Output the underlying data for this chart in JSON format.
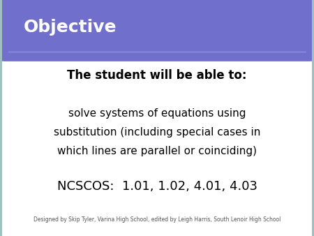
{
  "title": "Objective",
  "title_bg_color": "#7070CC",
  "title_text_color": "#FFFFFF",
  "body_bg_color": "#FFFFFF",
  "outer_bg_color": "#A0C0C0",
  "border_color": "#A0C0C0",
  "header_text": "The student will be able to:",
  "body_text_line1": "solve systems of equations using",
  "body_text_line2": "substitution (including special cases in",
  "body_text_line3": "which lines are parallel or coinciding)",
  "ncscos_text": "NCSCOS:  1.01, 1.02, 4.01, 4.03",
  "footer_text": "Designed by Skip Tyler, Varina High School, edited by Leigh Harris, South Lenoir High School",
  "header_fontsize": 12,
  "body_fontsize": 11,
  "ncscos_fontsize": 13,
  "footer_fontsize": 5.5,
  "title_fontsize": 18,
  "separator_color": "#9999DD"
}
